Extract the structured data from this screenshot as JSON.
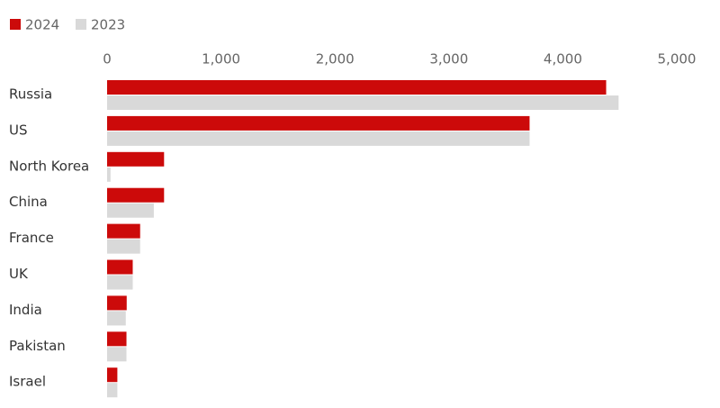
{
  "chart_data": {
    "type": "hbar",
    "categories": [
      "Russia",
      "US",
      "North Korea",
      "China",
      "France",
      "UK",
      "India",
      "Pakistan",
      "Israel"
    ],
    "series": [
      {
        "name": "2024",
        "color": "#cc0a0a",
        "values": [
          4380,
          3708,
          500,
          500,
          290,
          225,
          172,
          170,
          90
        ]
      },
      {
        "name": "2023",
        "color": "#d9d9d9",
        "values": [
          4489,
          3708,
          30,
          410,
          290,
          225,
          164,
          170,
          90
        ]
      }
    ],
    "xlim": [
      0,
      5000
    ],
    "xticks": [
      0,
      {
        "value": 1000,
        "label": "1,000"
      },
      {
        "value": 2000,
        "label": "2,000"
      },
      {
        "value": 3000,
        "label": "3,000"
      },
      {
        "value": 4000,
        "label": "4,000"
      },
      {
        "value": 5000,
        "label": "5,000"
      }
    ],
    "legend": "top-left"
  }
}
